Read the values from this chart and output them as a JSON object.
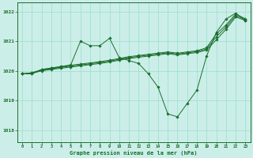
{
  "xlabel": "Graphe pression niveau de la mer (hPa)",
  "bg_color": "#cceee8",
  "grid_color": "#99ddcc",
  "line_color": "#1a6e2e",
  "xlim": [
    -0.5,
    23.5
  ],
  "ylim": [
    1017.6,
    1022.3
  ],
  "yticks": [
    1018,
    1019,
    1020,
    1021,
    1022
  ],
  "xticks": [
    0,
    1,
    2,
    3,
    4,
    5,
    6,
    7,
    8,
    9,
    10,
    11,
    12,
    13,
    14,
    15,
    16,
    17,
    18,
    19,
    20,
    21,
    22,
    23
  ],
  "series1_x": [
    0,
    1,
    2,
    3,
    4,
    5,
    6,
    7,
    8,
    9,
    10,
    11,
    12,
    13,
    14,
    15,
    16,
    17,
    18,
    19,
    20,
    21,
    22,
    23
  ],
  "series1_y": [
    1019.9,
    1019.9,
    1020.05,
    1020.1,
    1020.15,
    1020.2,
    1021.0,
    1020.85,
    1020.85,
    1021.1,
    1020.45,
    1020.35,
    1020.25,
    1019.9,
    1019.45,
    1018.55,
    1018.45,
    1018.9,
    1019.35,
    1020.5,
    1021.3,
    1021.75,
    1021.95,
    1021.7
  ],
  "series2_x": [
    0,
    1,
    2,
    3,
    4,
    5,
    6,
    7,
    8,
    9,
    10,
    11,
    12,
    13,
    14,
    15,
    16,
    17,
    18,
    19,
    20,
    21,
    22,
    23
  ],
  "series2_y": [
    1019.9,
    1019.92,
    1020.0,
    1020.05,
    1020.09,
    1020.13,
    1020.17,
    1020.21,
    1020.25,
    1020.3,
    1020.36,
    1020.42,
    1020.46,
    1020.5,
    1020.54,
    1020.58,
    1020.54,
    1020.58,
    1020.62,
    1020.7,
    1021.05,
    1021.4,
    1021.82,
    1021.7
  ],
  "series3_x": [
    0,
    1,
    2,
    3,
    4,
    5,
    6,
    7,
    8,
    9,
    10,
    11,
    12,
    13,
    14,
    15,
    16,
    17,
    18,
    19,
    20,
    21,
    22,
    23
  ],
  "series3_y": [
    1019.9,
    1019.93,
    1020.02,
    1020.07,
    1020.12,
    1020.16,
    1020.2,
    1020.24,
    1020.28,
    1020.33,
    1020.39,
    1020.45,
    1020.49,
    1020.53,
    1020.57,
    1020.61,
    1020.57,
    1020.61,
    1020.65,
    1020.74,
    1021.15,
    1021.48,
    1021.87,
    1021.73
  ],
  "series4_x": [
    0,
    1,
    2,
    3,
    4,
    5,
    6,
    7,
    8,
    9,
    10,
    11,
    12,
    13,
    14,
    15,
    16,
    17,
    18,
    19,
    20,
    21,
    22,
    23
  ],
  "series4_y": [
    1019.9,
    1019.94,
    1020.04,
    1020.09,
    1020.14,
    1020.19,
    1020.23,
    1020.27,
    1020.31,
    1020.36,
    1020.42,
    1020.48,
    1020.52,
    1020.56,
    1020.6,
    1020.64,
    1020.6,
    1020.64,
    1020.68,
    1020.78,
    1021.25,
    1021.55,
    1021.92,
    1021.76
  ]
}
